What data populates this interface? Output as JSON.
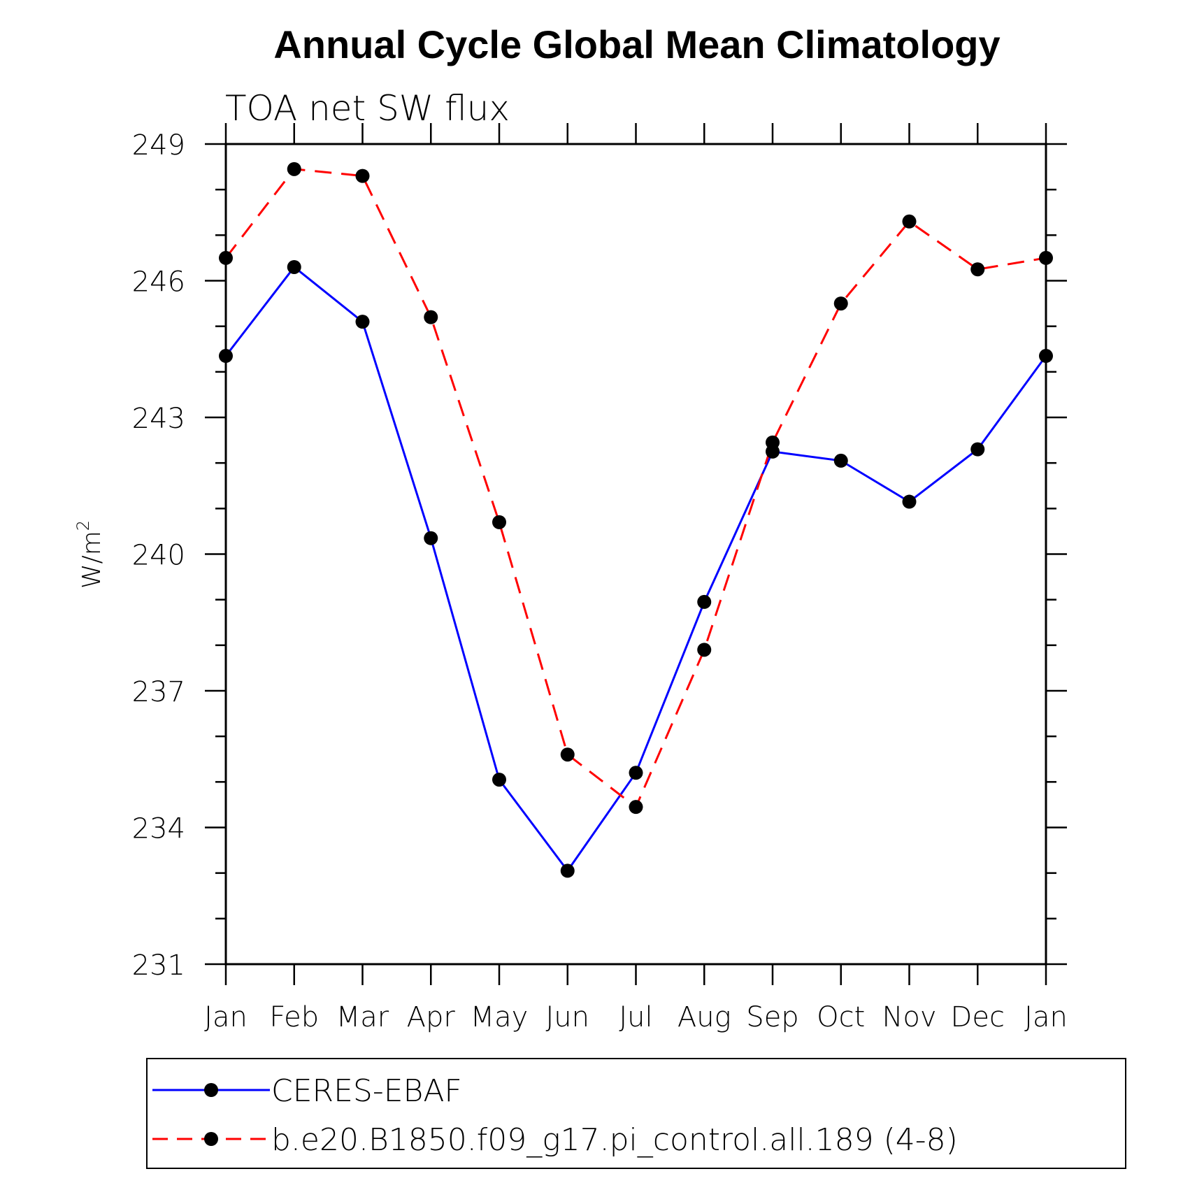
{
  "chart_data": {
    "type": "line",
    "title": "Annual Cycle Global Mean Climatology",
    "subtitle": "TOA net SW flux",
    "xlabel": "",
    "ylabel": "W/m",
    "ylabel_superscript": "2",
    "categories": [
      "Jan",
      "Feb",
      "Mar",
      "Apr",
      "May",
      "Jun",
      "Jul",
      "Aug",
      "Sep",
      "Oct",
      "Nov",
      "Dec",
      "Jan"
    ],
    "ylim": [
      231,
      249
    ],
    "yticks": [
      231,
      234,
      237,
      240,
      243,
      246,
      249
    ],
    "yminor_step": 1,
    "grid": false,
    "legend_position": "bottom",
    "series": [
      {
        "name": "CERES-EBAF",
        "color": "#0000ff",
        "dash": "solid",
        "values": [
          244.35,
          246.3,
          245.1,
          240.35,
          235.05,
          233.05,
          235.2,
          238.95,
          242.25,
          242.05,
          241.15,
          242.3,
          244.35
        ]
      },
      {
        "name": "b.e20.B1850.f09_g17.pi_control.all.189 (4-8)",
        "color": "#ff0000",
        "dash": "dashed",
        "values": [
          246.5,
          248.45,
          248.3,
          245.2,
          240.7,
          235.6,
          234.45,
          237.9,
          242.45,
          245.5,
          247.3,
          246.25,
          246.5
        ]
      }
    ]
  }
}
